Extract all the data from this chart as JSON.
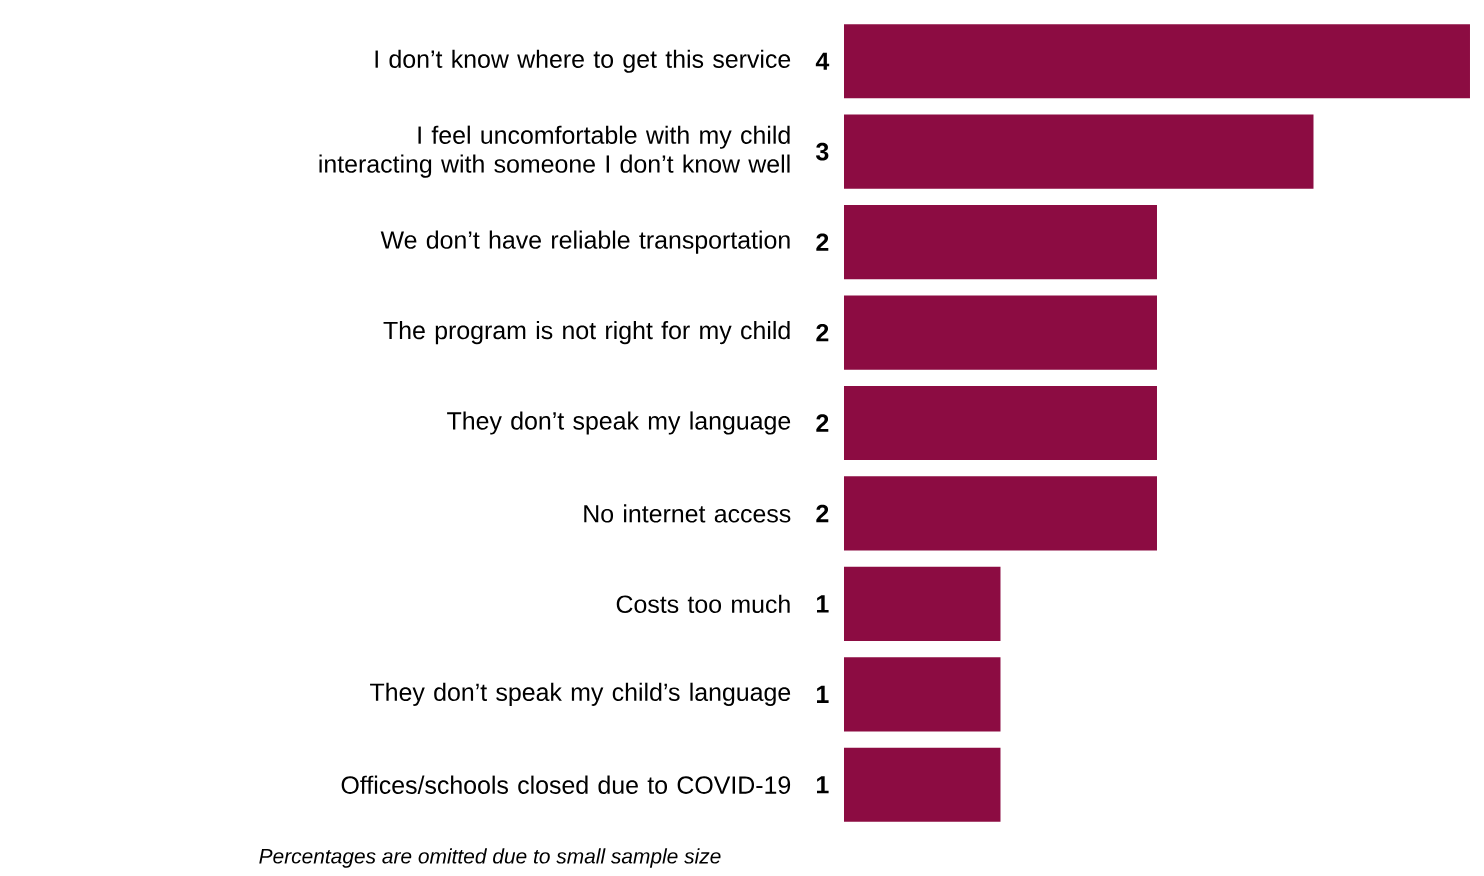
{
  "chart_data": {
    "type": "bar",
    "orientation": "horizontal",
    "categories": [
      "I don’t know where to get this service",
      "I feel uncomfortable with my child interacting with someone I don’t know well",
      "We don’t have reliable transportation",
      "The program is not right for my child",
      "They don’t speak my language",
      "No internet access",
      "Costs too much",
      "They don’t speak my child’s language",
      "Offices/schools closed due to COVID-19"
    ],
    "values": [
      4,
      3,
      2,
      2,
      2,
      2,
      1,
      1,
      1
    ],
    "color": "#8c0c42",
    "data_labels": true,
    "annotations": [
      "Percentages are omitted due to small sample size"
    ]
  }
}
